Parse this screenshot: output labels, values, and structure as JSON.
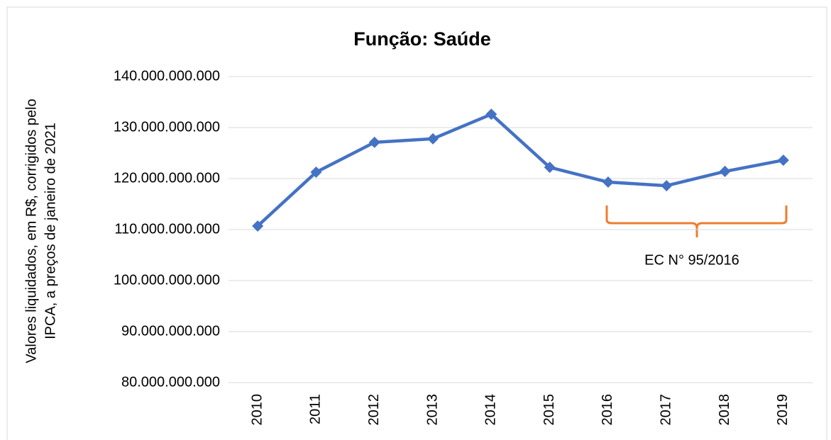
{
  "chart_data": {
    "type": "line",
    "title": "Função: Saúde",
    "ylabel": [
      "Valores liquidados, em R$, corrigidos pelo",
      "IPCA, a preços de janeiro de 2021"
    ],
    "categories": [
      "2010",
      "2011",
      "2012",
      "2013",
      "2014",
      "2015",
      "2016",
      "2017",
      "2018",
      "2019"
    ],
    "series": [
      {
        "name": "Função: Saúde",
        "color": "#4472c4",
        "values": [
          110700000000,
          121250000000,
          127100000000,
          127800000000,
          132600000000,
          122200000000,
          119300000000,
          118600000000,
          121400000000,
          123600000000
        ]
      }
    ],
    "ylim": [
      80000000000,
      140000000000
    ],
    "yticks": [
      {
        "value": 80000000000,
        "label": "80.000.000.000"
      },
      {
        "value": 90000000000,
        "label": "90.000.000.000"
      },
      {
        "value": 100000000000,
        "label": "100.000.000.000"
      },
      {
        "value": 110000000000,
        "label": "110.000.000.000"
      },
      {
        "value": 120000000000,
        "label": "120.000.000.000"
      },
      {
        "value": 130000000000,
        "label": "130.000.000.000"
      },
      {
        "value": 140000000000,
        "label": "140.000.000.000"
      }
    ],
    "grid": true,
    "annotation": {
      "text": "EC N° 95/2016",
      "color": "#ed7d31"
    }
  }
}
